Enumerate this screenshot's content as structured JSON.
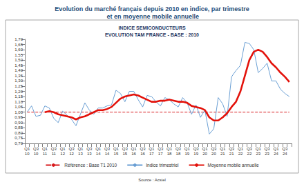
{
  "chart_data": {
    "type": "line",
    "title": "Evolution du marché français depuis 2010 en indice, par trimestre et en moyenne mobile annuelle",
    "subtitle": [
      "INDICE SEMICONDUCTEURS",
      "EVOLUTION TAM FRANCE - BASE : 2010"
    ],
    "source": "Source : Acsiel",
    "categories": [
      "Q1\n10",
      null,
      "Q3\n10",
      null,
      "Q1\n11",
      null,
      "Q3\n11",
      null,
      "Q1\n12",
      null,
      "Q3\n12",
      null,
      "Q1\n13",
      null,
      "Q3\n13",
      null,
      "Q1\n14",
      null,
      "Q3\n14",
      null,
      "Q1\n15",
      null,
      "Q3\n15",
      null,
      "Q1\n16",
      null,
      "Q3\n16",
      null,
      "Q1\n17",
      null,
      "Q3\n17",
      null,
      "Q1\n18",
      null,
      "Q3\n18",
      null,
      "Q1\n19",
      null,
      "Q3\n19",
      null,
      "Q1\n20",
      null,
      "Q3\n20",
      null,
      "Q1\n21",
      null,
      "Q3\n21",
      null,
      "Q1\n22",
      null,
      "Q3\n22",
      null,
      "Q1\n23",
      null,
      "Q3\n23",
      null,
      "Q1\n24",
      null,
      "Q3\n24",
      null
    ],
    "series": [
      {
        "name": "Référence : Base T1 2010",
        "color": "#d7191c",
        "line_style": "dashed",
        "values": [
          1,
          1,
          1,
          1,
          1,
          1,
          1,
          1,
          1,
          1,
          1,
          1,
          1,
          1,
          1,
          1,
          1,
          1,
          1,
          1,
          1,
          1,
          1,
          1,
          1,
          1,
          1,
          1,
          1,
          1,
          1,
          1,
          1,
          1,
          1,
          1,
          1,
          1,
          1,
          1,
          1,
          1,
          1,
          1,
          1,
          1,
          1,
          1,
          1,
          1,
          1,
          1,
          1,
          1,
          1,
          1,
          1,
          1,
          1,
          1
        ]
      },
      {
        "name": "Indice trimestriel",
        "color": "#6a9fd4",
        "line_style": "solid",
        "values": [
          1.0,
          1.06,
          0.96,
          0.97,
          1.06,
          1.04,
          0.94,
          0.9,
          1.01,
          0.97,
          0.93,
          0.87,
          0.98,
          1.09,
          1.02,
          0.98,
          1.04,
          1.04,
          1.06,
          1.07,
          1.21,
          1.18,
          1.1,
          1.2,
          1.2,
          1.12,
          1.05,
          1.16,
          1.15,
          1.1,
          1.06,
          1.14,
          1.12,
          1.08,
          1.05,
          1.14,
          1.09,
          0.98,
          1.07,
          0.95,
          1.02,
          0.79,
          0.84,
          1.14,
          1.08,
          0.96,
          1.34,
          1.4,
          1.45,
          1.67,
          1.66,
          1.6,
          1.38,
          1.42,
          1.47,
          1.3,
          1.3,
          1.22,
          1.18,
          1.15
        ]
      },
      {
        "name": "Moyenne mobile annuelle",
        "color": "#e3120b",
        "line_style": "solid",
        "values": [
          null,
          null,
          null,
          null,
          1.0,
          1.01,
          1.0,
          0.98,
          0.97,
          0.96,
          0.95,
          0.93,
          0.95,
          0.96,
          0.98,
          1.0,
          1.02,
          1.02,
          1.03,
          1.05,
          1.09,
          1.13,
          1.15,
          1.16,
          1.17,
          1.16,
          1.14,
          1.12,
          1.1,
          1.1,
          1.11,
          1.11,
          1.12,
          1.11,
          1.1,
          1.1,
          1.09,
          1.06,
          1.05,
          1.04,
          1.02,
          0.95,
          0.92,
          0.92,
          0.95,
          0.99,
          1.05,
          1.1,
          1.2,
          1.35,
          1.5,
          1.58,
          1.6,
          1.58,
          1.53,
          1.47,
          1.43,
          1.38,
          1.34,
          1.29
        ]
      }
    ],
    "ylim": [
      0.7,
      1.7
    ],
    "yticks": [
      {
        "value": 0.7,
        "label": "0,70"
      },
      {
        "value": 0.75,
        "label": "0,75"
      },
      {
        "value": 0.8,
        "label": "0,80"
      },
      {
        "value": 0.85,
        "label": "0,85"
      },
      {
        "value": 0.9,
        "label": "0,90"
      },
      {
        "value": 0.95,
        "label": "0,95"
      },
      {
        "value": 1.0,
        "label": "1,00"
      },
      {
        "value": 1.05,
        "label": "1,05"
      },
      {
        "value": 1.1,
        "label": "1,10"
      },
      {
        "value": 1.15,
        "label": "1,15"
      },
      {
        "value": 1.2,
        "label": "1,20"
      },
      {
        "value": 1.25,
        "label": "1,25"
      },
      {
        "value": 1.3,
        "label": "1,30"
      },
      {
        "value": 1.35,
        "label": "1,35"
      },
      {
        "value": 1.4,
        "label": "1,40"
      },
      {
        "value": 1.45,
        "label": "1,45"
      },
      {
        "value": 1.5,
        "label": "1,50"
      },
      {
        "value": 1.55,
        "label": "1,55"
      },
      {
        "value": 1.6,
        "label": "1,60"
      },
      {
        "value": 1.65,
        "label": "1,65"
      },
      {
        "value": 1.7,
        "label": "1,70"
      }
    ],
    "grid": false,
    "legend": "bottom"
  }
}
